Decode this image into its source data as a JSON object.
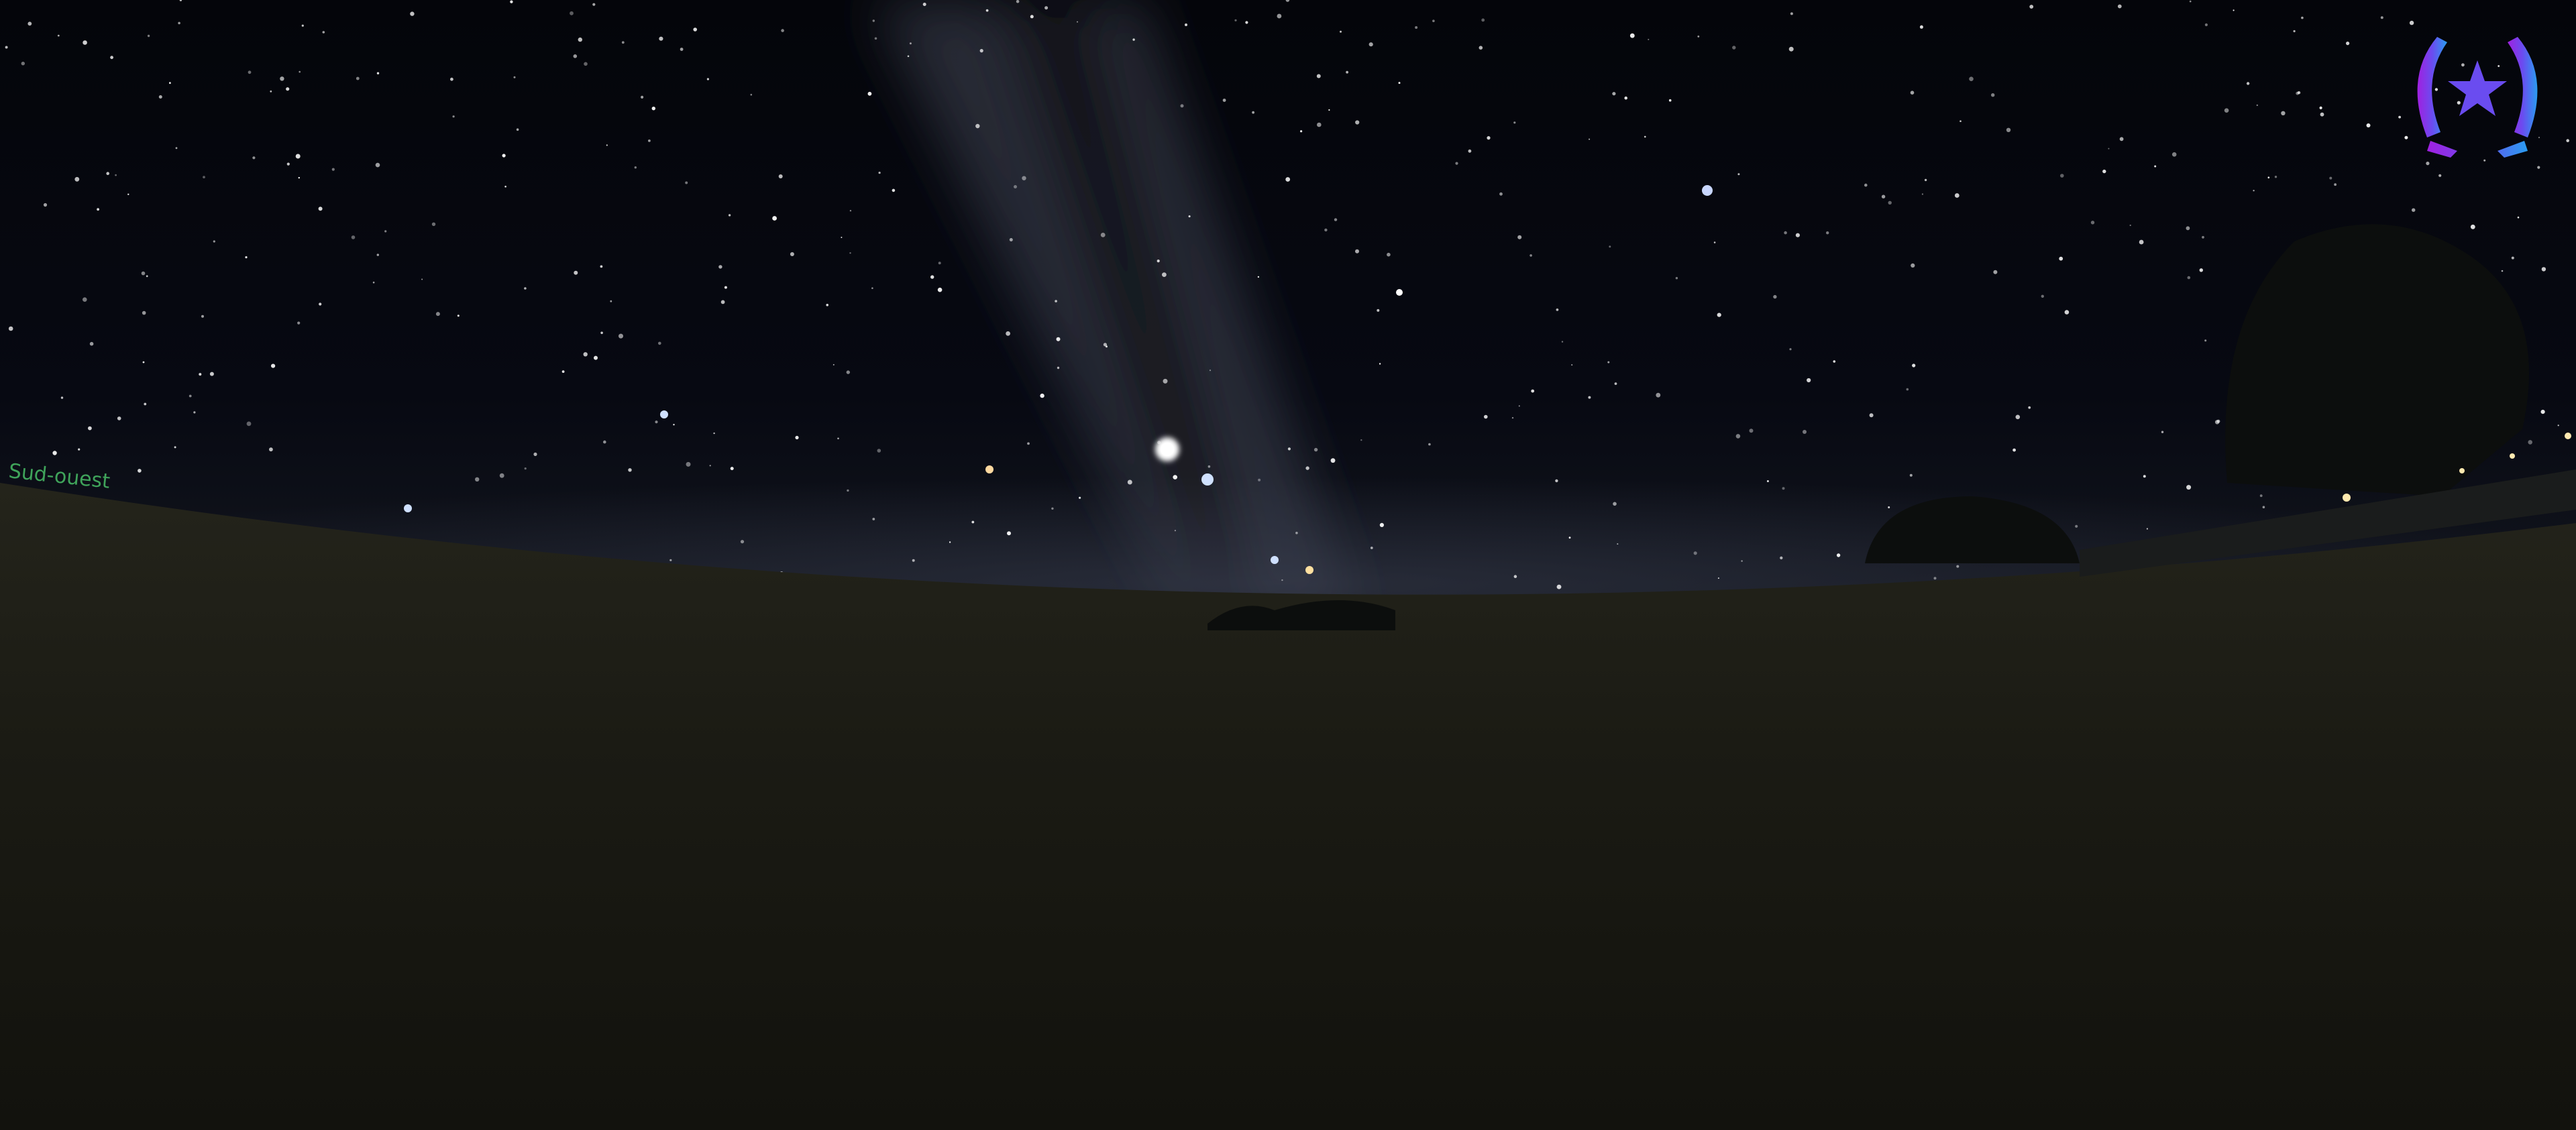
{
  "horizon_label": {
    "text": "Sud-ouest"
  }
}
